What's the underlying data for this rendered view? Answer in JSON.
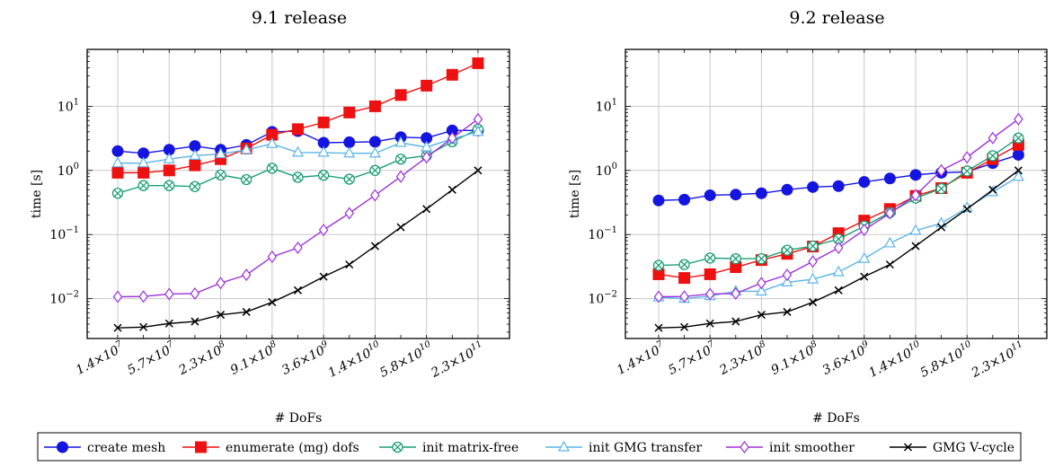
{
  "chart_data": [
    {
      "type": "line",
      "title": "9.1 release",
      "xlabel": "# DoFs",
      "ylabel": "time [s]",
      "yscale": "log",
      "ylim": [
        0.002,
        100
      ],
      "grid": true,
      "x": [
        "1.4×10^7",
        "2.8×10^7",
        "5.7×10^7",
        "1.1×10^8",
        "2.3×10^8",
        "4.5×10^8",
        "9.1×10^8",
        "1.8×10^9",
        "3.6×10^9",
        "7.2×10^9",
        "1.4×10^10",
        "2.9×10^10",
        "5.8×10^10",
        "1.2×10^11",
        "2.3×10^11"
      ],
      "series": [
        {
          "name": "create mesh",
          "values": [
            2.0,
            1.85,
            2.1,
            2.4,
            2.1,
            2.5,
            4.0,
            4.1,
            2.7,
            2.75,
            2.8,
            3.3,
            3.2,
            4.2,
            4.2
          ]
        },
        {
          "name": "enumerate (mg) dofs",
          "values": [
            0.92,
            0.92,
            1.0,
            1.2,
            1.5,
            2.2,
            3.6,
            4.4,
            5.6,
            8.0,
            10.0,
            15.0,
            21.0,
            31.0,
            47.0
          ]
        },
        {
          "name": "init matrix-free",
          "values": [
            0.44,
            0.58,
            0.58,
            0.56,
            0.85,
            0.72,
            1.08,
            0.78,
            0.84,
            0.73,
            1.0,
            1.5,
            1.7,
            2.8,
            4.4
          ]
        },
        {
          "name": "init GMG transfer",
          "values": [
            1.3,
            1.3,
            1.5,
            1.7,
            1.8,
            2.1,
            2.6,
            1.9,
            1.9,
            1.85,
            1.85,
            2.7,
            2.3,
            3.1,
            4.0
          ]
        },
        {
          "name": "init smoother",
          "values": [
            0.0107,
            0.0108,
            0.0118,
            0.012,
            0.0175,
            0.0235,
            0.045,
            0.062,
            0.118,
            0.215,
            0.41,
            0.8,
            1.6,
            3.2,
            6.3
          ]
        },
        {
          "name": "GMG V-cycle",
          "values": [
            0.0035,
            0.0036,
            0.0041,
            0.0044,
            0.0056,
            0.0062,
            0.0088,
            0.0135,
            0.022,
            0.034,
            0.066,
            0.13,
            0.25,
            0.5,
            1.0
          ]
        }
      ]
    },
    {
      "type": "line",
      "title": "9.2 release",
      "xlabel": "# DoFs",
      "ylabel": "time [s]",
      "yscale": "log",
      "ylim": [
        0.002,
        100
      ],
      "grid": true,
      "x": [
        "1.4×10^7",
        "2.8×10^7",
        "5.7×10^7",
        "1.1×10^8",
        "2.3×10^8",
        "4.5×10^8",
        "9.1×10^8",
        "1.8×10^9",
        "3.6×10^9",
        "7.2×10^9",
        "1.4×10^10",
        "2.9×10^10",
        "5.8×10^10",
        "1.2×10^11",
        "2.3×10^11"
      ],
      "series": [
        {
          "name": "create mesh",
          "values": [
            0.34,
            0.35,
            0.41,
            0.42,
            0.44,
            0.5,
            0.55,
            0.57,
            0.66,
            0.75,
            0.85,
            0.92,
            0.95,
            1.3,
            1.75
          ]
        },
        {
          "name": "enumerate (mg) dofs",
          "values": [
            0.024,
            0.021,
            0.024,
            0.031,
            0.04,
            0.05,
            0.065,
            0.105,
            0.165,
            0.25,
            0.4,
            0.53,
            0.92,
            1.5,
            2.5
          ]
        },
        {
          "name": "init matrix-free",
          "values": [
            0.033,
            0.034,
            0.043,
            0.042,
            0.042,
            0.057,
            0.066,
            0.085,
            0.135,
            0.22,
            0.37,
            0.52,
            0.98,
            1.7,
            3.2
          ]
        },
        {
          "name": "init GMG transfer",
          "values": [
            0.0105,
            0.01,
            0.011,
            0.013,
            0.013,
            0.018,
            0.02,
            0.026,
            0.042,
            0.073,
            0.115,
            0.15,
            0.26,
            0.46,
            0.8
          ]
        },
        {
          "name": "init smoother",
          "values": [
            0.0107,
            0.0108,
            0.0118,
            0.012,
            0.0175,
            0.0235,
            0.038,
            0.062,
            0.118,
            0.215,
            0.41,
            1.0,
            1.6,
            3.2,
            6.3
          ]
        },
        {
          "name": "GMG V-cycle",
          "values": [
            0.0035,
            0.0036,
            0.0041,
            0.0044,
            0.0056,
            0.0062,
            0.0088,
            0.0135,
            0.022,
            0.034,
            0.066,
            0.13,
            0.25,
            0.5,
            1.0
          ]
        }
      ]
    }
  ],
  "x_tick_labels": [
    {
      "mant": "1.4",
      "exp": "7"
    },
    {
      "mant": "5.7",
      "exp": "7"
    },
    {
      "mant": "2.3",
      "exp": "8"
    },
    {
      "mant": "9.1",
      "exp": "8"
    },
    {
      "mant": "3.6",
      "exp": "9"
    },
    {
      "mant": "1.4",
      "exp": "10"
    },
    {
      "mant": "5.8",
      "exp": "10"
    },
    {
      "mant": "2.3",
      "exp": "11"
    }
  ],
  "y_tick_labels": [
    {
      "base": "10",
      "exp": "1",
      "value": 10
    },
    {
      "base": "10",
      "exp": "0",
      "value": 1
    },
    {
      "base": "10",
      "exp": "−1",
      "value": 0.1
    },
    {
      "base": "10",
      "exp": "−2",
      "value": 0.01
    }
  ],
  "legend": {
    "placement": "bottom",
    "entries": [
      {
        "label": "create mesh",
        "color": "#1515e0",
        "marker": "circle"
      },
      {
        "label": "enumerate (mg) dofs",
        "color": "#ee1111",
        "marker": "square"
      },
      {
        "label": "init matrix-free",
        "color": "#1b9e77",
        "marker": "circle-x"
      },
      {
        "label": "init GMG transfer",
        "color": "#5ab4e8",
        "marker": "triangle"
      },
      {
        "label": "init smoother",
        "color": "#9b30d9",
        "marker": "diamond"
      },
      {
        "label": "GMG V-cycle",
        "color": "#000000",
        "marker": "x"
      }
    ]
  }
}
